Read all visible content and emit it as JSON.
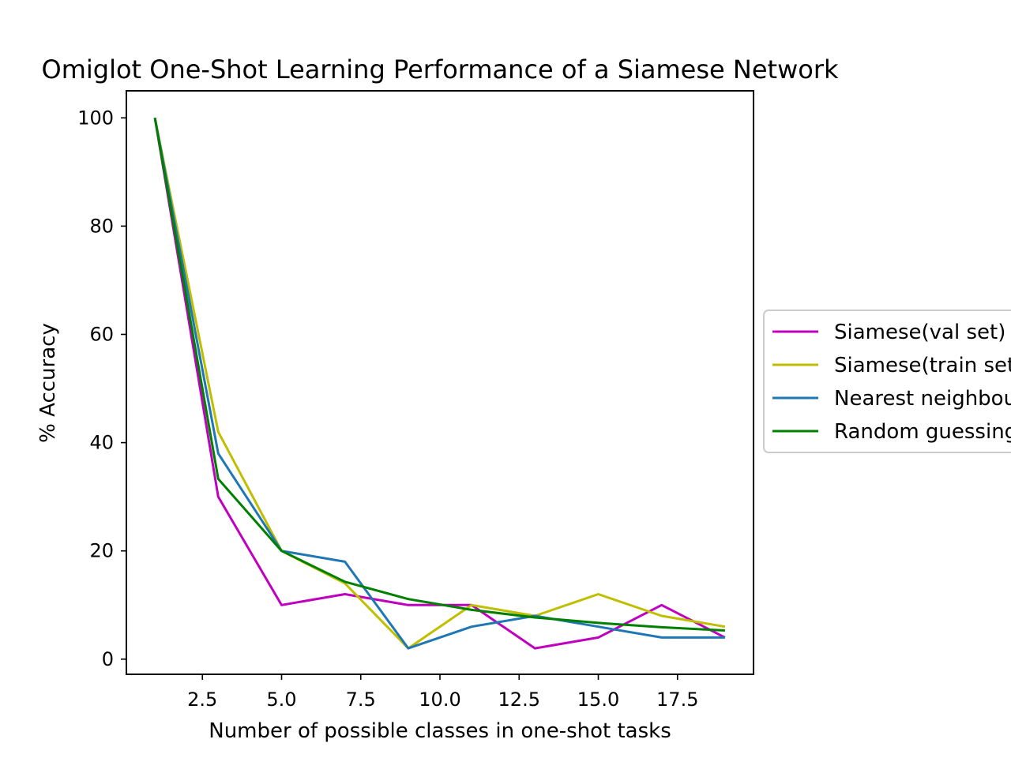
{
  "chart_data": {
    "type": "line",
    "title": "Omiglot One-Shot Learning Performance of a Siamese Network",
    "xlabel": "Number of possible classes in one-shot tasks",
    "ylabel": "% Accuracy",
    "xlim": [
      0.1,
      19.9
    ],
    "ylim": [
      -2.8,
      105
    ],
    "x_ticks": [
      "2.5",
      "5.0",
      "7.5",
      "10.0",
      "12.5",
      "15.0",
      "17.5"
    ],
    "y_ticks": [
      "0",
      "20",
      "40",
      "60",
      "80",
      "100"
    ],
    "x_tick_values": [
      2.5,
      5.0,
      7.5,
      10.0,
      12.5,
      15.0,
      17.5
    ],
    "y_tick_values": [
      0,
      20,
      40,
      60,
      80,
      100
    ],
    "grid": false,
    "legend_position": "right, outside plot",
    "x": [
      1,
      3,
      5,
      7,
      9,
      11,
      13,
      15,
      17,
      19
    ],
    "series": [
      {
        "name": "Siamese(val set)",
        "color": "#bf00bf",
        "values": [
          100,
          30,
          10,
          12,
          10,
          10,
          2,
          4,
          10,
          4
        ]
      },
      {
        "name": "Siamese(train set)",
        "color": "#bfbf00",
        "values": [
          100,
          42,
          20,
          14,
          2,
          10,
          8,
          12,
          8,
          6
        ]
      },
      {
        "name": "Nearest neighbour",
        "color": "#1f77b4",
        "values": [
          100,
          38,
          20,
          18,
          2,
          6,
          8,
          6,
          4,
          4
        ]
      },
      {
        "name": "Random guessing",
        "color": "#008000",
        "values": [
          100,
          33.3,
          20,
          14.3,
          11.1,
          9.1,
          7.7,
          6.7,
          5.9,
          5.3
        ]
      }
    ]
  }
}
